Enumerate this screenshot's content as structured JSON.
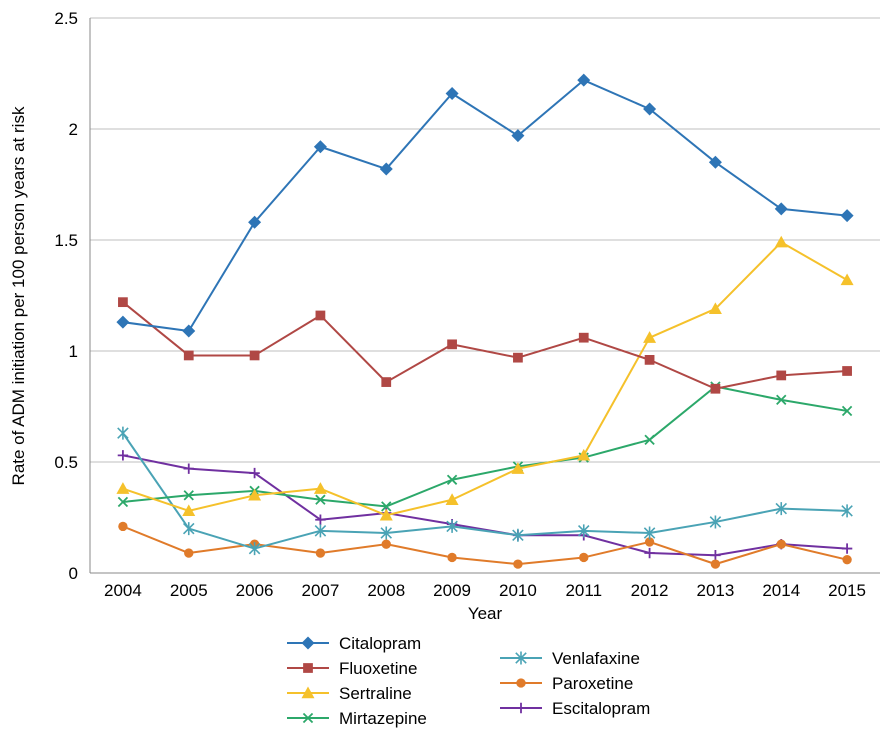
{
  "chart_data": {
    "type": "line",
    "title": "",
    "xlabel": "Year",
    "ylabel": "Rate of ADM initiation per 100 person years at risk",
    "categories": [
      "2004",
      "2005",
      "2006",
      "2007",
      "2008",
      "2009",
      "2010",
      "2011",
      "2012",
      "2013",
      "2014",
      "2015"
    ],
    "ylim": [
      0,
      2.5
    ],
    "yticks": [
      0,
      0.5,
      1,
      1.5,
      2,
      2.5
    ],
    "ytick_labels": [
      "0",
      "0.5",
      "1",
      "1.5",
      "2",
      "2.5"
    ],
    "grid": "horizontal",
    "legend_position": "bottom",
    "series": [
      {
        "name": "Citalopram",
        "color": "#2e75b6",
        "marker": "diamond",
        "values": [
          1.13,
          1.09,
          1.58,
          1.92,
          1.82,
          2.16,
          1.97,
          2.22,
          2.09,
          1.85,
          1.64,
          1.61
        ]
      },
      {
        "name": "Fluoxetine",
        "color": "#b04845",
        "marker": "square",
        "values": [
          1.22,
          0.98,
          0.98,
          1.16,
          0.86,
          1.03,
          0.97,
          1.06,
          0.96,
          0.83,
          0.89,
          0.91
        ]
      },
      {
        "name": "Sertraline",
        "color": "#f5c12b",
        "marker": "triangle",
        "values": [
          0.38,
          0.28,
          0.35,
          0.38,
          0.26,
          0.33,
          0.47,
          0.53,
          1.06,
          1.19,
          1.49,
          1.32
        ]
      },
      {
        "name": "Mirtazepine",
        "color": "#2ca86a",
        "marker": "x",
        "values": [
          0.32,
          0.35,
          0.37,
          0.33,
          0.3,
          0.42,
          0.48,
          0.52,
          0.6,
          0.84,
          0.78,
          0.73
        ]
      },
      {
        "name": "Venlafaxine",
        "color": "#4aa3b5",
        "marker": "asterisk",
        "values": [
          0.63,
          0.2,
          0.11,
          0.19,
          0.18,
          0.21,
          0.17,
          0.19,
          0.18,
          0.23,
          0.29,
          0.28
        ]
      },
      {
        "name": "Paroxetine",
        "color": "#e07b2a",
        "marker": "circle",
        "values": [
          0.21,
          0.09,
          0.13,
          0.09,
          0.13,
          0.07,
          0.04,
          0.07,
          0.14,
          0.04,
          0.13,
          0.06
        ]
      },
      {
        "name": "Escitalopram",
        "color": "#7030a0",
        "marker": "plus",
        "values": [
          0.53,
          0.47,
          0.45,
          0.24,
          0.27,
          0.22,
          0.17,
          0.17,
          0.09,
          0.08,
          0.13,
          0.11
        ]
      }
    ]
  }
}
